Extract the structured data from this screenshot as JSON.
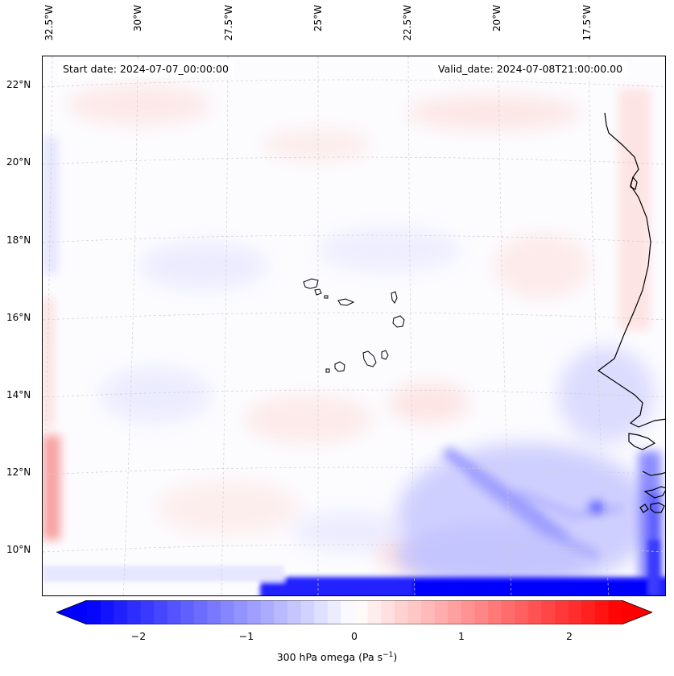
{
  "map": {
    "start_date": "Start date: 2024-07-07_00:00:00",
    "valid_date": "Valid_date: 2024-07-08T21:00:00.00",
    "lon_labels": [
      "32.5°W",
      "30°W",
      "27.5°W",
      "25°W",
      "22.5°W",
      "20°W",
      "17.5°W"
    ],
    "lat_labels": [
      "22°N",
      "20°N",
      "18°N",
      "16°N",
      "14°N",
      "12°N",
      "10°N"
    ],
    "field": "300 hPa omega",
    "colormap": "bwr",
    "colors": {
      "negative": "#0000ff",
      "zero": "#ffffff",
      "positive": "#ff0000",
      "coastline": "#000000",
      "grid": "#c8c8c8"
    }
  },
  "colorbar": {
    "ticks": [
      "−2",
      "−1",
      "0",
      "1",
      "2"
    ],
    "range": [
      -2.6,
      2.6
    ],
    "extend": "both",
    "label_prefix": "300 hPa omega (Pa s",
    "label_sup": "−1",
    "label_suffix": ")"
  }
}
